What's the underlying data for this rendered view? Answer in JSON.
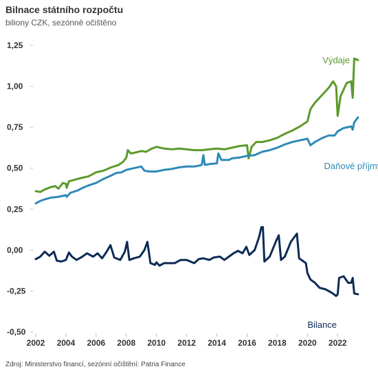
{
  "header": {
    "title": "Bilnace státního rozpočtu",
    "subtitle": "biliony CZK, sezónně očištěno"
  },
  "footer": {
    "source": "Zdroj: Ministerstvo financí, sezónní očištění: Patria Finance"
  },
  "colors": {
    "vydaje": "#5b9a2a",
    "prijmy": "#2e8ab8",
    "bilance": "#0d2a55",
    "grid": "#bfbfbf",
    "text": "#333333"
  },
  "chart_data": {
    "type": "line",
    "title": "Bilnace státního rozpočtu",
    "subtitle": "biliony CZK, sezónně očištěno",
    "xlabel": "",
    "ylabel": "",
    "xlim": [
      2002,
      2023.4
    ],
    "ylim": [
      -0.5,
      1.25
    ],
    "x_ticks": [
      2002,
      2004,
      2006,
      2008,
      2010,
      2012,
      2014,
      2016,
      2018,
      2020,
      2022
    ],
    "x_tick_labels": [
      "2002",
      "2004",
      "2006",
      "2008",
      "2010",
      "2012",
      "2014",
      "2016",
      "2018",
      "2020",
      "2022"
    ],
    "y_ticks": [
      -0.5,
      -0.25,
      0,
      0.25,
      0.5,
      0.75,
      1.0,
      1.25
    ],
    "y_tick_labels": [
      "-0,50",
      "-0,25",
      "0,00",
      "0,25",
      "0,50",
      "0,75",
      "1,00",
      "1,25"
    ],
    "grid": false,
    "series": [
      {
        "name": "Výdaje",
        "color": "#5b9a2a",
        "points": [
          [
            2002.0,
            0.36
          ],
          [
            2002.3,
            0.355
          ],
          [
            2002.6,
            0.37
          ],
          [
            2003.0,
            0.385
          ],
          [
            2003.3,
            0.39
          ],
          [
            2003.5,
            0.375
          ],
          [
            2003.8,
            0.41
          ],
          [
            2004.0,
            0.405
          ],
          [
            2004.05,
            0.38
          ],
          [
            2004.2,
            0.42
          ],
          [
            2004.6,
            0.43
          ],
          [
            2005.0,
            0.44
          ],
          [
            2005.5,
            0.45
          ],
          [
            2006.0,
            0.475
          ],
          [
            2006.5,
            0.485
          ],
          [
            2007.0,
            0.505
          ],
          [
            2007.5,
            0.52
          ],
          [
            2007.8,
            0.54
          ],
          [
            2008.0,
            0.565
          ],
          [
            2008.1,
            0.61
          ],
          [
            2008.3,
            0.59
          ],
          [
            2008.8,
            0.6
          ],
          [
            2009.0,
            0.605
          ],
          [
            2009.3,
            0.6
          ],
          [
            2009.7,
            0.62
          ],
          [
            2010.0,
            0.63
          ],
          [
            2010.5,
            0.62
          ],
          [
            2011.0,
            0.615
          ],
          [
            2011.5,
            0.62
          ],
          [
            2012.0,
            0.615
          ],
          [
            2012.5,
            0.61
          ],
          [
            2013.0,
            0.61
          ],
          [
            2013.5,
            0.615
          ],
          [
            2014.0,
            0.62
          ],
          [
            2014.5,
            0.615
          ],
          [
            2015.0,
            0.625
          ],
          [
            2015.5,
            0.635
          ],
          [
            2016.0,
            0.64
          ],
          [
            2016.1,
            0.56
          ],
          [
            2016.3,
            0.63
          ],
          [
            2016.6,
            0.66
          ],
          [
            2017.0,
            0.66
          ],
          [
            2017.5,
            0.67
          ],
          [
            2018.0,
            0.685
          ],
          [
            2018.5,
            0.71
          ],
          [
            2019.0,
            0.73
          ],
          [
            2019.5,
            0.755
          ],
          [
            2020.0,
            0.785
          ],
          [
            2020.2,
            0.86
          ],
          [
            2020.5,
            0.9
          ],
          [
            2021.0,
            0.95
          ],
          [
            2021.4,
            0.99
          ],
          [
            2021.7,
            1.03
          ],
          [
            2021.9,
            1.0
          ],
          [
            2022.0,
            0.82
          ],
          [
            2022.2,
            0.94
          ],
          [
            2022.6,
            1.02
          ],
          [
            2022.9,
            1.03
          ],
          [
            2023.0,
            0.93
          ],
          [
            2023.1,
            1.17
          ],
          [
            2023.35,
            1.16
          ]
        ]
      },
      {
        "name": "Daňové příjmy",
        "color": "#2e8ab8",
        "points": [
          [
            2002.0,
            0.285
          ],
          [
            2002.3,
            0.3
          ],
          [
            2002.6,
            0.31
          ],
          [
            2003.0,
            0.32
          ],
          [
            2003.5,
            0.325
          ],
          [
            2004.0,
            0.335
          ],
          [
            2004.05,
            0.325
          ],
          [
            2004.3,
            0.35
          ],
          [
            2004.8,
            0.365
          ],
          [
            2005.0,
            0.375
          ],
          [
            2005.5,
            0.395
          ],
          [
            2006.0,
            0.41
          ],
          [
            2006.5,
            0.435
          ],
          [
            2007.0,
            0.455
          ],
          [
            2007.3,
            0.47
          ],
          [
            2007.7,
            0.475
          ],
          [
            2008.0,
            0.49
          ],
          [
            2008.5,
            0.5
          ],
          [
            2009.0,
            0.51
          ],
          [
            2009.2,
            0.485
          ],
          [
            2009.5,
            0.48
          ],
          [
            2010.0,
            0.48
          ],
          [
            2010.5,
            0.49
          ],
          [
            2011.0,
            0.495
          ],
          [
            2011.5,
            0.505
          ],
          [
            2012.0,
            0.51
          ],
          [
            2012.5,
            0.51
          ],
          [
            2012.8,
            0.515
          ],
          [
            2013.0,
            0.52
          ],
          [
            2013.1,
            0.58
          ],
          [
            2013.2,
            0.52
          ],
          [
            2013.5,
            0.525
          ],
          [
            2014.0,
            0.53
          ],
          [
            2014.1,
            0.59
          ],
          [
            2014.3,
            0.55
          ],
          [
            2014.8,
            0.55
          ],
          [
            2015.0,
            0.56
          ],
          [
            2015.5,
            0.565
          ],
          [
            2016.0,
            0.575
          ],
          [
            2016.5,
            0.58
          ],
          [
            2017.0,
            0.6
          ],
          [
            2017.5,
            0.61
          ],
          [
            2018.0,
            0.625
          ],
          [
            2018.5,
            0.645
          ],
          [
            2019.0,
            0.66
          ],
          [
            2019.5,
            0.67
          ],
          [
            2020.0,
            0.68
          ],
          [
            2020.2,
            0.64
          ],
          [
            2020.5,
            0.66
          ],
          [
            2021.0,
            0.685
          ],
          [
            2021.4,
            0.7
          ],
          [
            2021.8,
            0.7
          ],
          [
            2022.0,
            0.725
          ],
          [
            2022.4,
            0.745
          ],
          [
            2022.9,
            0.755
          ],
          [
            2023.0,
            0.735
          ],
          [
            2023.1,
            0.78
          ],
          [
            2023.35,
            0.81
          ]
        ]
      },
      {
        "name": "Bilance",
        "color": "#0d2a55",
        "points": [
          [
            2002.0,
            -0.055
          ],
          [
            2002.3,
            -0.04
          ],
          [
            2002.6,
            -0.01
          ],
          [
            2002.9,
            -0.035
          ],
          [
            2003.2,
            -0.01
          ],
          [
            2003.4,
            -0.065
          ],
          [
            2003.7,
            -0.07
          ],
          [
            2004.0,
            -0.06
          ],
          [
            2004.2,
            -0.015
          ],
          [
            2004.4,
            -0.04
          ],
          [
            2004.7,
            -0.06
          ],
          [
            2005.0,
            -0.045
          ],
          [
            2005.4,
            -0.02
          ],
          [
            2005.8,
            -0.04
          ],
          [
            2006.1,
            -0.02
          ],
          [
            2006.4,
            -0.05
          ],
          [
            2006.7,
            -0.01
          ],
          [
            2006.95,
            0.03
          ],
          [
            2007.2,
            -0.045
          ],
          [
            2007.6,
            -0.06
          ],
          [
            2007.9,
            -0.01
          ],
          [
            2008.05,
            0.05
          ],
          [
            2008.2,
            -0.06
          ],
          [
            2008.5,
            -0.05
          ],
          [
            2008.9,
            -0.04
          ],
          [
            2009.2,
            0.0
          ],
          [
            2009.4,
            0.05
          ],
          [
            2009.6,
            -0.08
          ],
          [
            2009.9,
            -0.09
          ],
          [
            2010.0,
            -0.075
          ],
          [
            2010.2,
            -0.095
          ],
          [
            2010.5,
            -0.08
          ],
          [
            2010.9,
            -0.08
          ],
          [
            2011.2,
            -0.08
          ],
          [
            2011.6,
            -0.06
          ],
          [
            2012.0,
            -0.06
          ],
          [
            2012.5,
            -0.08
          ],
          [
            2012.8,
            -0.055
          ],
          [
            2013.1,
            -0.05
          ],
          [
            2013.5,
            -0.06
          ],
          [
            2013.8,
            -0.045
          ],
          [
            2014.2,
            -0.04
          ],
          [
            2014.5,
            -0.06
          ],
          [
            2014.8,
            -0.04
          ],
          [
            2015.1,
            -0.02
          ],
          [
            2015.4,
            -0.005
          ],
          [
            2015.7,
            -0.02
          ],
          [
            2015.95,
            0.02
          ],
          [
            2016.15,
            -0.03
          ],
          [
            2016.5,
            0.0
          ],
          [
            2016.8,
            0.08
          ],
          [
            2016.95,
            0.14
          ],
          [
            2017.05,
            0.14
          ],
          [
            2017.15,
            -0.07
          ],
          [
            2017.5,
            -0.04
          ],
          [
            2017.9,
            0.05
          ],
          [
            2018.1,
            0.09
          ],
          [
            2018.25,
            -0.06
          ],
          [
            2018.5,
            -0.04
          ],
          [
            2018.9,
            0.05
          ],
          [
            2019.3,
            0.1
          ],
          [
            2019.45,
            -0.05
          ],
          [
            2019.9,
            -0.08
          ],
          [
            2020.0,
            -0.14
          ],
          [
            2020.2,
            -0.18
          ],
          [
            2020.5,
            -0.2
          ],
          [
            2020.8,
            -0.23
          ],
          [
            2021.2,
            -0.24
          ],
          [
            2021.6,
            -0.26
          ],
          [
            2021.9,
            -0.28
          ],
          [
            2022.0,
            -0.27
          ],
          [
            2022.1,
            -0.17
          ],
          [
            2022.4,
            -0.16
          ],
          [
            2022.7,
            -0.2
          ],
          [
            2022.9,
            -0.2
          ],
          [
            2023.0,
            -0.17
          ],
          [
            2023.1,
            -0.265
          ],
          [
            2023.35,
            -0.27
          ]
        ]
      }
    ],
    "series_labels": [
      {
        "text": "Výdaje",
        "x": 2021.0,
        "y": 1.14
      },
      {
        "text": "Daňové příjmy",
        "x": 2021.1,
        "y": 0.495
      },
      {
        "text": "Bilance",
        "x": 2020.0,
        "y": -0.475
      }
    ]
  }
}
